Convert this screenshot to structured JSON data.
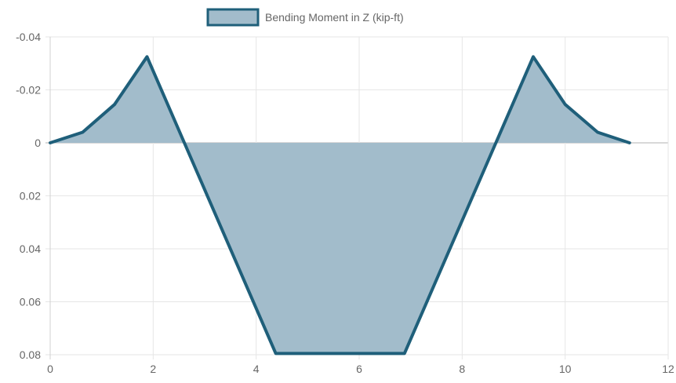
{
  "chart_data": {
    "type": "area",
    "series": [
      {
        "name": "Bending Moment in Z (kip-ft)",
        "fill_color": "#a2bccb",
        "line_color": "#1f5f7a",
        "points": [
          {
            "x": 0,
            "y": 0
          },
          {
            "x": 0.63,
            "y": -0.004
          },
          {
            "x": 1.25,
            "y": -0.0145
          },
          {
            "x": 1.88,
            "y": -0.0325
          },
          {
            "x": 4.38,
            "y": 0.0795
          },
          {
            "x": 6.88,
            "y": 0.0795
          },
          {
            "x": 9.38,
            "y": -0.0325
          },
          {
            "x": 10.0,
            "y": -0.0145
          },
          {
            "x": 10.63,
            "y": -0.004
          },
          {
            "x": 11.25,
            "y": 0
          }
        ]
      }
    ],
    "xlim": [
      0,
      12
    ],
    "ylim": [
      -0.04,
      0.08
    ],
    "y_reversed": true,
    "x_ticks": [
      "0",
      "2",
      "4",
      "6",
      "8",
      "10",
      "12"
    ],
    "y_ticks": [
      "-0.04",
      "-0.02",
      "0",
      "0.02",
      "0.04",
      "0.06",
      "0.08"
    ],
    "grid": true,
    "legend_position": "top"
  }
}
